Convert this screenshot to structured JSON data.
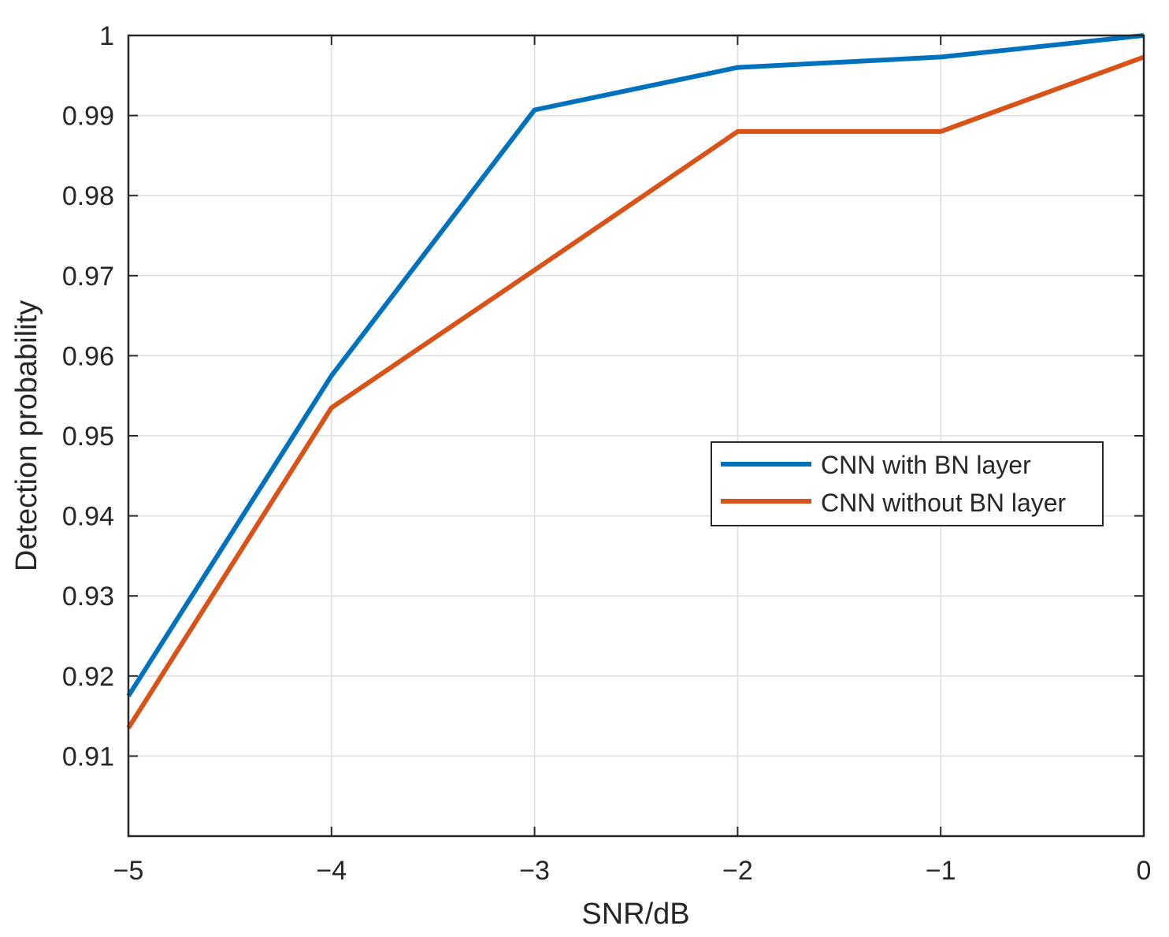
{
  "chart_data": {
    "type": "line",
    "title": "",
    "xlabel": "SNR/dB",
    "ylabel": "Detection probability",
    "xlim": [
      -5,
      0
    ],
    "ylim": [
      0.9,
      1.0
    ],
    "xticks": [
      -5,
      -4,
      -3,
      -2,
      -1,
      0
    ],
    "xtick_labels": [
      "−5",
      "−4",
      "−3",
      "−2",
      "−1",
      "0"
    ],
    "yticks": [
      0.91,
      0.92,
      0.93,
      0.94,
      0.95,
      0.96,
      0.97,
      0.98,
      0.99,
      1
    ],
    "ytick_labels": [
      "0.91",
      "0.92",
      "0.93",
      "0.94",
      "0.95",
      "0.96",
      "0.97",
      "0.98",
      "0.99",
      "1"
    ],
    "grid": true,
    "legend_position": "center-right",
    "x": [
      -5,
      -4,
      -3,
      -2,
      -1,
      0
    ],
    "series": [
      {
        "name": "CNN with BN layer",
        "color": "#0072BD",
        "values": [
          0.9175,
          0.9575,
          0.9907,
          0.996,
          0.9973,
          1.0
        ]
      },
      {
        "name": "CNN without BN layer",
        "color": "#D95319",
        "values": [
          0.9135,
          0.9535,
          0.9707,
          0.988,
          0.988,
          0.9973
        ]
      }
    ]
  }
}
